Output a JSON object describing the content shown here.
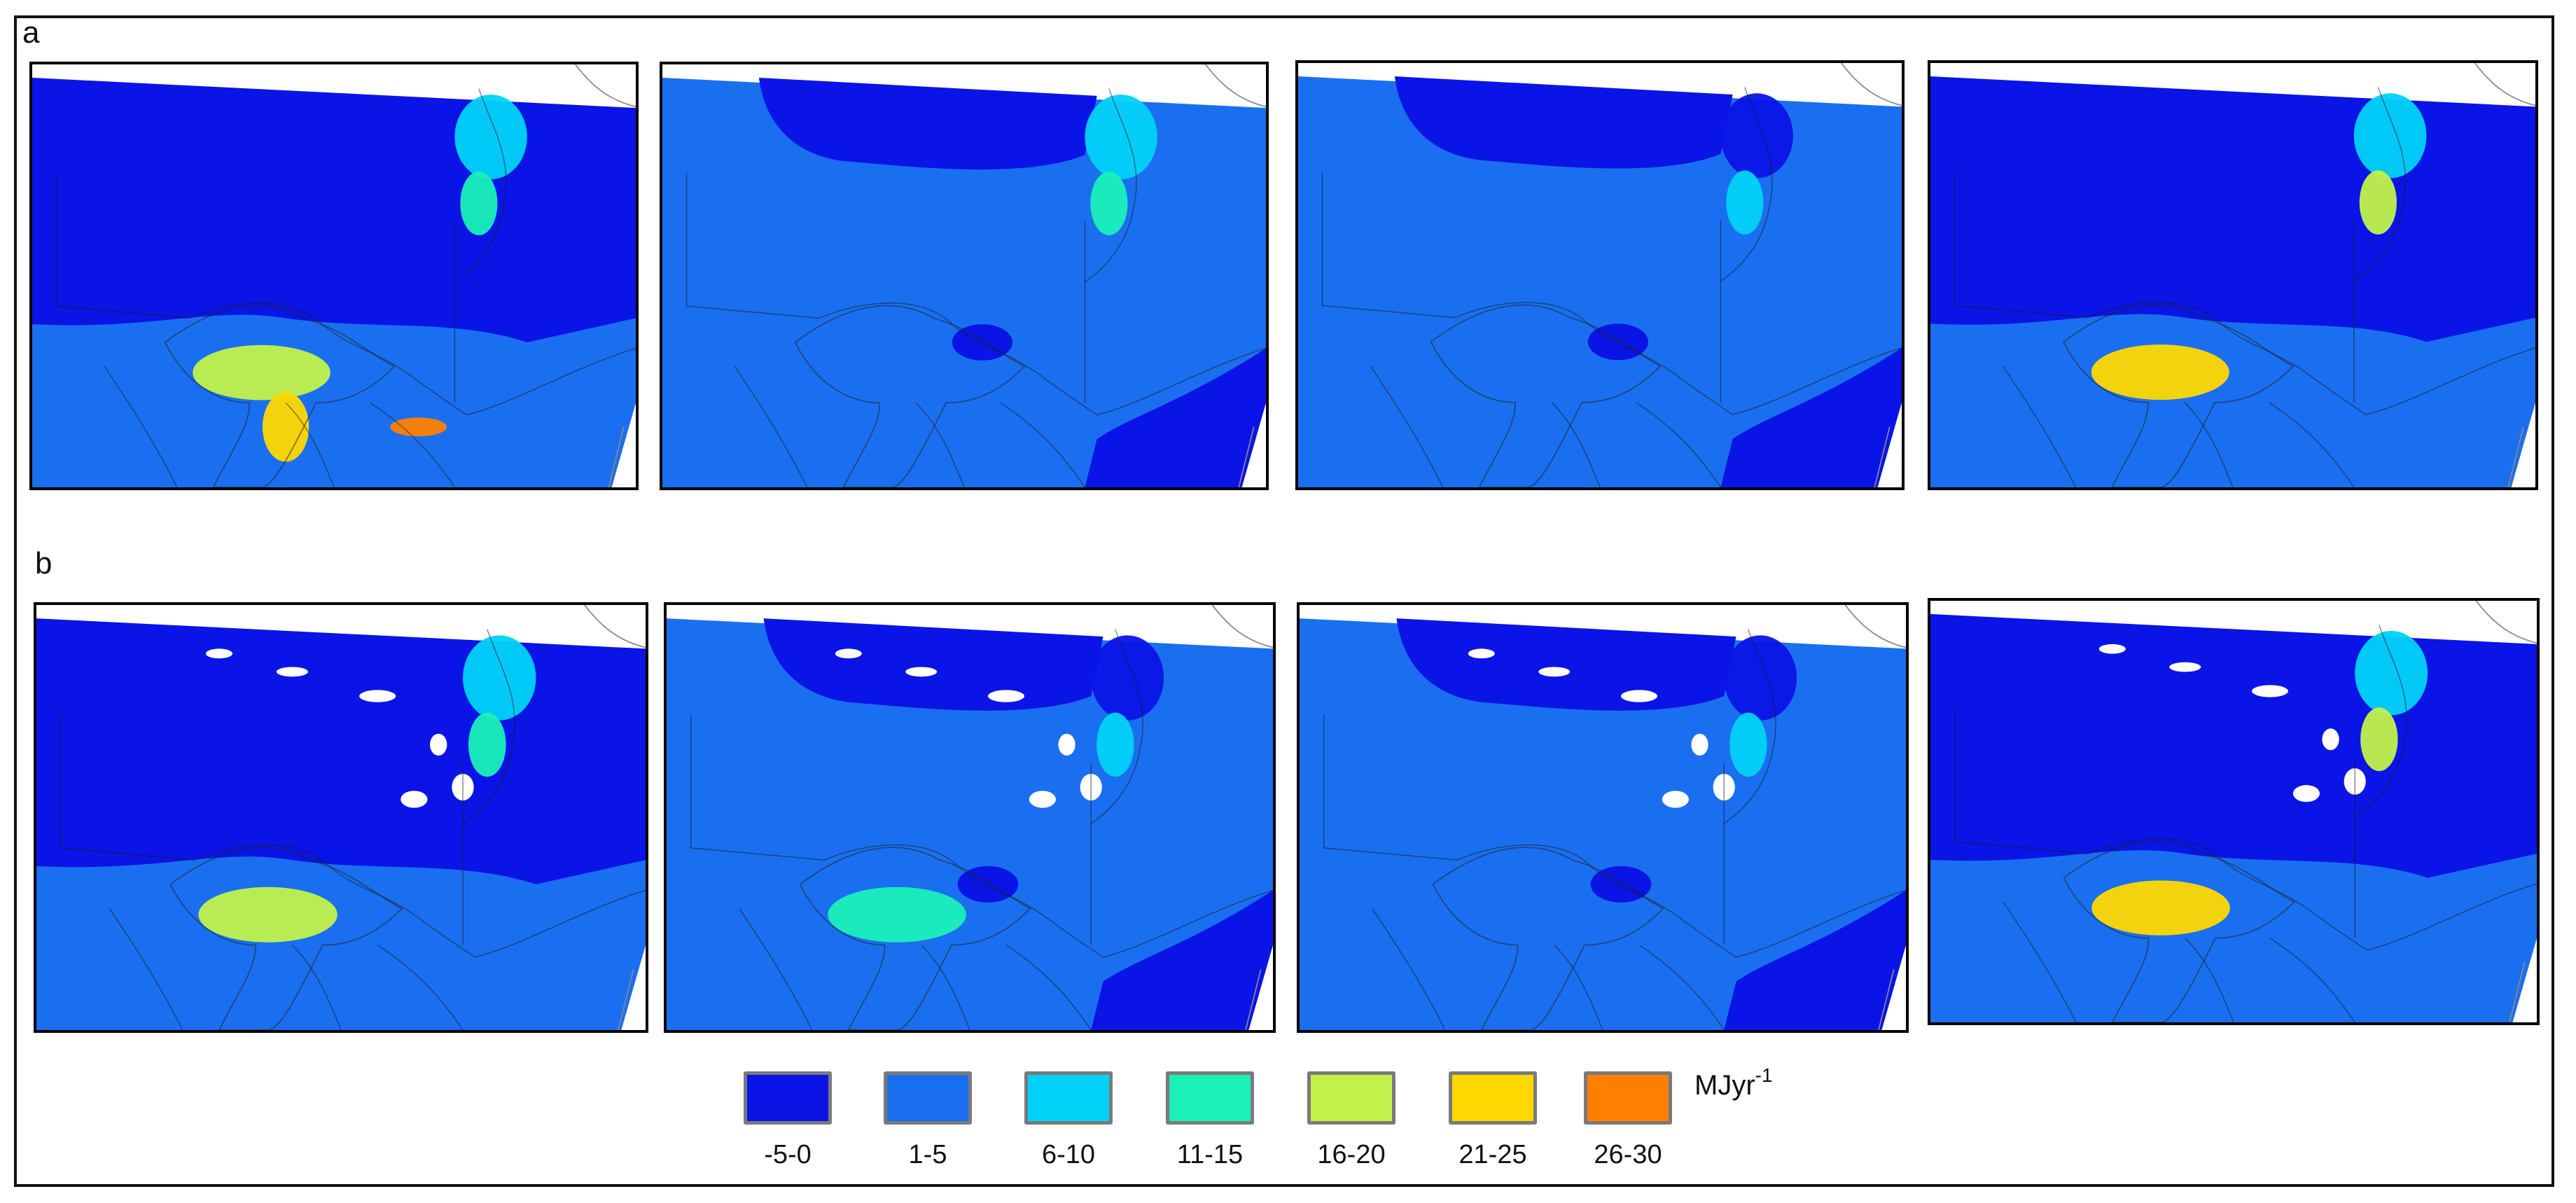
{
  "figure": {
    "row_labels": [
      "a",
      "b"
    ],
    "unit": {
      "base": "MJyr",
      "exponent": "-1"
    }
  },
  "legend": [
    {
      "label": "-5-0",
      "color": "#0a14e6"
    },
    {
      "label": "1-5",
      "color": "#1a6ff0"
    },
    {
      "label": "6-10",
      "color": "#00d2f8"
    },
    {
      "label": "11-15",
      "color": "#1af0b8"
    },
    {
      "label": "16-20",
      "color": "#c2f24a"
    },
    {
      "label": "21-25",
      "color": "#ffd800"
    },
    {
      "label": "26-30",
      "color": "#ff8000"
    }
  ],
  "panels": [
    {
      "row": "a",
      "col": 1,
      "background_class": "-5-0",
      "hotspot_classes": [
        "6-10",
        "11-15",
        "16-20",
        "21-25",
        "26-30"
      ]
    },
    {
      "row": "a",
      "col": 2,
      "background_class": "1-5",
      "hotspot_classes": [
        "6-10",
        "11-15"
      ]
    },
    {
      "row": "a",
      "col": 3,
      "background_class": "1-5",
      "hotspot_classes": [
        "-5-0",
        "6-10"
      ]
    },
    {
      "row": "a",
      "col": 4,
      "background_class": "-5-0",
      "hotspot_classes": [
        "6-10",
        "16-20",
        "21-25"
      ]
    },
    {
      "row": "b",
      "col": 1,
      "background_class": "-5-0",
      "hotspot_classes": [
        "6-10",
        "11-15",
        "16-20"
      ]
    },
    {
      "row": "b",
      "col": 2,
      "background_class": "1-5",
      "hotspot_classes": [
        "-5-0",
        "6-10",
        "11-15"
      ]
    },
    {
      "row": "b",
      "col": 3,
      "background_class": "1-5",
      "hotspot_classes": [
        "-5-0",
        "6-10"
      ]
    },
    {
      "row": "b",
      "col": 4,
      "background_class": "-5-0",
      "hotspot_classes": [
        "6-10",
        "16-20",
        "21-25"
      ]
    }
  ]
}
